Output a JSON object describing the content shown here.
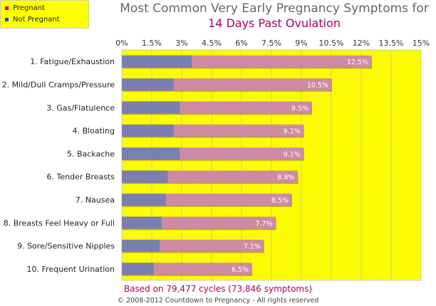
{
  "legend": {
    "items": [
      {
        "label": "Pregnant",
        "color": "#cc0044"
      },
      {
        "label": "Not Pregnant",
        "color": "#1a52a6"
      }
    ]
  },
  "footnote": "Based on 79,477 cycles (73,846 symptoms)",
  "copyright": "© 2008-2012 Countdown to Pregnancy - All rights reserved",
  "chart_data": {
    "type": "bar",
    "orientation": "horizontal",
    "title": "Most Common Very Early Pregnancy Symptoms for",
    "subtitle": "14 Days Past Ovulation",
    "xlim": [
      0,
      15
    ],
    "xticks": [
      "0%",
      "1.5%",
      "3%",
      "4.5%",
      "6%",
      "7.5%",
      "9%",
      "10.5%",
      "12%",
      "13.5%",
      "15%"
    ],
    "categories": [
      "1. Fatigue/Exhaustion",
      "2. Mild/Dull Cramps/Pressure",
      "3. Gas/Flatulence",
      "4. Bloating",
      "5. Backache",
      "6. Tender Breasts",
      "7. Nausea",
      "8. Breasts Feel Heavy or Full",
      "9. Sore/Sensitive Nipples",
      "10. Frequent Urination"
    ],
    "series": [
      {
        "name": "Pregnant",
        "color": "#cf8aa3",
        "values": [
          12.5,
          10.5,
          9.5,
          9.1,
          9.1,
          8.8,
          8.5,
          7.7,
          7.1,
          6.5
        ],
        "labels": [
          "12.5%",
          "10.5%",
          "9.5%",
          "9.1%",
          "9.1%",
          "8.8%",
          "8.5%",
          "7.7%",
          "7.1%",
          "6.5%"
        ]
      },
      {
        "name": "Not Pregnant",
        "color": "#7a7eb0",
        "values": [
          3.5,
          2.6,
          2.9,
          2.6,
          2.9,
          2.3,
          2.2,
          2.0,
          1.9,
          1.6
        ]
      }
    ],
    "plot_background": "#ffff00",
    "grid": true
  }
}
